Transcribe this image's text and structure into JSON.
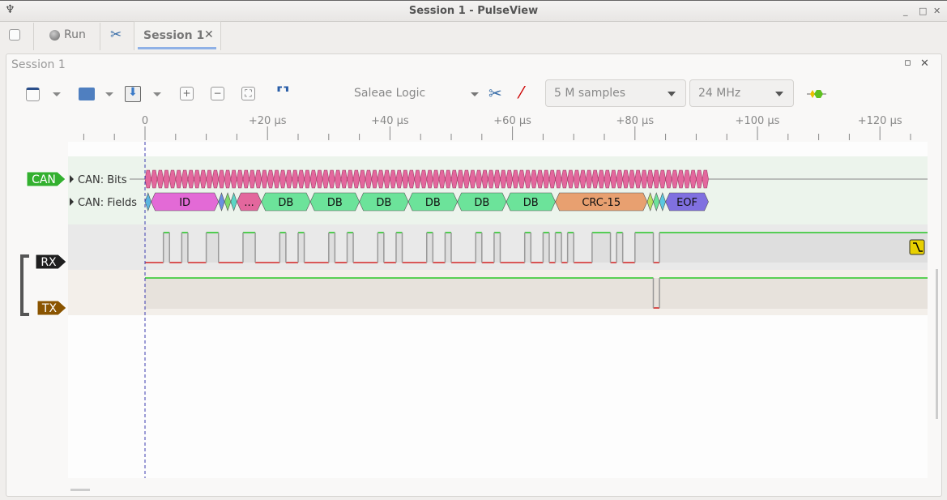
{
  "window": {
    "title": "Session 1 - PulseView",
    "controls": [
      "_",
      "□",
      "✕"
    ]
  },
  "tabbar": {
    "run_label": "Run",
    "session_tab": "Session 1",
    "close": "✕"
  },
  "session": {
    "title": "Session 1",
    "float": "▫",
    "close": "✕"
  },
  "toolbar": {
    "device": "Saleae Logic",
    "samples": "5 M samples",
    "samplerate": "24 MHz",
    "icons": [
      "new-session-icon",
      "open-icon",
      "save-icon",
      "zoom-in-icon",
      "zoom-out-icon",
      "zoom-fit-icon",
      "cursors-icon",
      "configure-device-icon",
      "probe-icon",
      "decoder-icon"
    ]
  },
  "ruler": {
    "labels": [
      "0",
      "+20 µs",
      "+40 µs",
      "+60 µs",
      "+80 µs",
      "+100 µs",
      "+120 µs"
    ],
    "major_values_us": [
      0,
      20,
      40,
      60,
      80,
      100,
      120
    ],
    "minor_step_us": 5
  },
  "traces": {
    "decoder": {
      "badge": "CAN",
      "badge_color": "#33b02f",
      "rows": [
        "CAN: Bits",
        "CAN: Fields"
      ],
      "bits_range_us": [
        0,
        92
      ],
      "bits_color": "#e3679d",
      "fields": [
        {
          "label": "",
          "start": 0,
          "end": 1,
          "color": "#5ab5e0"
        },
        {
          "label": "ID",
          "start": 1,
          "end": 12,
          "color": "#e36ad6"
        },
        {
          "label": "",
          "start": 12,
          "end": 13,
          "color": "#6a8fe0"
        },
        {
          "label": "",
          "start": 13,
          "end": 14,
          "color": "#7ddb6a"
        },
        {
          "label": "",
          "start": 14,
          "end": 15,
          "color": "#5ad6c5"
        },
        {
          "label": "...",
          "start": 15,
          "end": 19,
          "color": "#e3679d"
        },
        {
          "label": "DB",
          "start": 19,
          "end": 27,
          "color": "#6ce39a"
        },
        {
          "label": "DB",
          "start": 27,
          "end": 35,
          "color": "#6ce39a"
        },
        {
          "label": "DB",
          "start": 35,
          "end": 43,
          "color": "#6ce39a"
        },
        {
          "label": "DB",
          "start": 43,
          "end": 51,
          "color": "#6ce39a"
        },
        {
          "label": "DB",
          "start": 51,
          "end": 59,
          "color": "#6ce39a"
        },
        {
          "label": "DB",
          "start": 59,
          "end": 67,
          "color": "#6ce39a"
        },
        {
          "label": "CRC-15",
          "start": 67,
          "end": 82,
          "color": "#e8a070"
        },
        {
          "label": "",
          "start": 82,
          "end": 83,
          "color": "#b8e060"
        },
        {
          "label": "",
          "start": 83,
          "end": 84,
          "color": "#6ce39a"
        },
        {
          "label": "",
          "start": 84,
          "end": 85,
          "color": "#5ac8e0"
        },
        {
          "label": "EOF",
          "start": 85,
          "end": 92,
          "color": "#8070e0"
        }
      ]
    },
    "rx": {
      "badge": "RX",
      "badge_color": "#1f1f1f",
      "high_intervals_us": [
        [
          3,
          4
        ],
        [
          6,
          7
        ],
        [
          10,
          12
        ],
        [
          16,
          18
        ],
        [
          22,
          23
        ],
        [
          25,
          26
        ],
        [
          30,
          31
        ],
        [
          33,
          34
        ],
        [
          38,
          39
        ],
        [
          41,
          42
        ],
        [
          46,
          47
        ],
        [
          49,
          50
        ],
        [
          54,
          55
        ],
        [
          57,
          58
        ],
        [
          62,
          63
        ],
        [
          65,
          66
        ],
        [
          67,
          68
        ],
        [
          69,
          70
        ],
        [
          73,
          76
        ],
        [
          77,
          78
        ],
        [
          80,
          83
        ],
        [
          84,
          128
        ]
      ],
      "trigger_icon": "falling-edge-trigger-icon"
    },
    "tx": {
      "badge": "TX",
      "badge_color": "#8a5400",
      "low_intervals_us": [
        [
          83,
          84
        ]
      ]
    }
  },
  "colors": {
    "high": "#00c000",
    "low": "#d00000",
    "cursor": "#3a3ab0"
  }
}
